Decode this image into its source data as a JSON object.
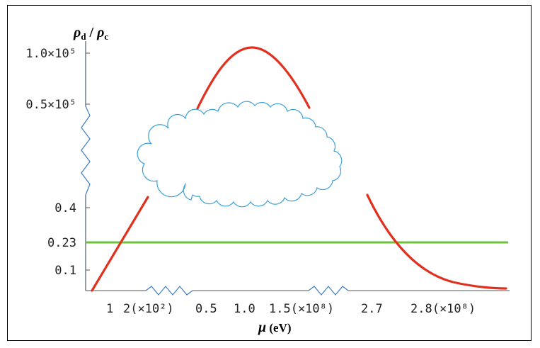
{
  "chart_data": {
    "type": "line",
    "ylabel": {
      "main": "ρ",
      "sub1": "d",
      "slash": " / ",
      "main2": "ρ",
      "sub2": "c"
    },
    "xlabel": {
      "symbol": "μ",
      "unit": " (eV)"
    },
    "y_ticks": [
      "1.0×10⁵",
      "0.5×10⁵",
      "0.4",
      "0.23",
      "0.1"
    ],
    "x_ticks": [
      "1",
      "2(×10²)",
      "0.5",
      "1.0",
      "1.5(×10⁸)",
      "2.7",
      "2.8(×10⁸)"
    ],
    "axis_breaks": {
      "y": "zigzag",
      "x": [
        "zigzag",
        "zigzag"
      ]
    },
    "series": [
      {
        "color": "#e03020",
        "segments": [
          {
            "x": [
              "1",
              "2(×10²)"
            ],
            "y": [
              0,
              0.4
            ]
          },
          {
            "x": [
              "0.5",
              "1.0",
              "1.5(×10⁸)"
            ],
            "y": [
              50000,
              105000,
              50000
            ]
          },
          {
            "x": [
              "2.7",
              "2.8(×10⁸)"
            ],
            "y": [
              0.4,
              0.001
            ]
          }
        ]
      },
      {
        "color": "#6fbf3f",
        "y_constant": 0.23
      }
    ],
    "annotation": {
      "shape": "cloud",
      "color": "#3aa0dc"
    }
  }
}
